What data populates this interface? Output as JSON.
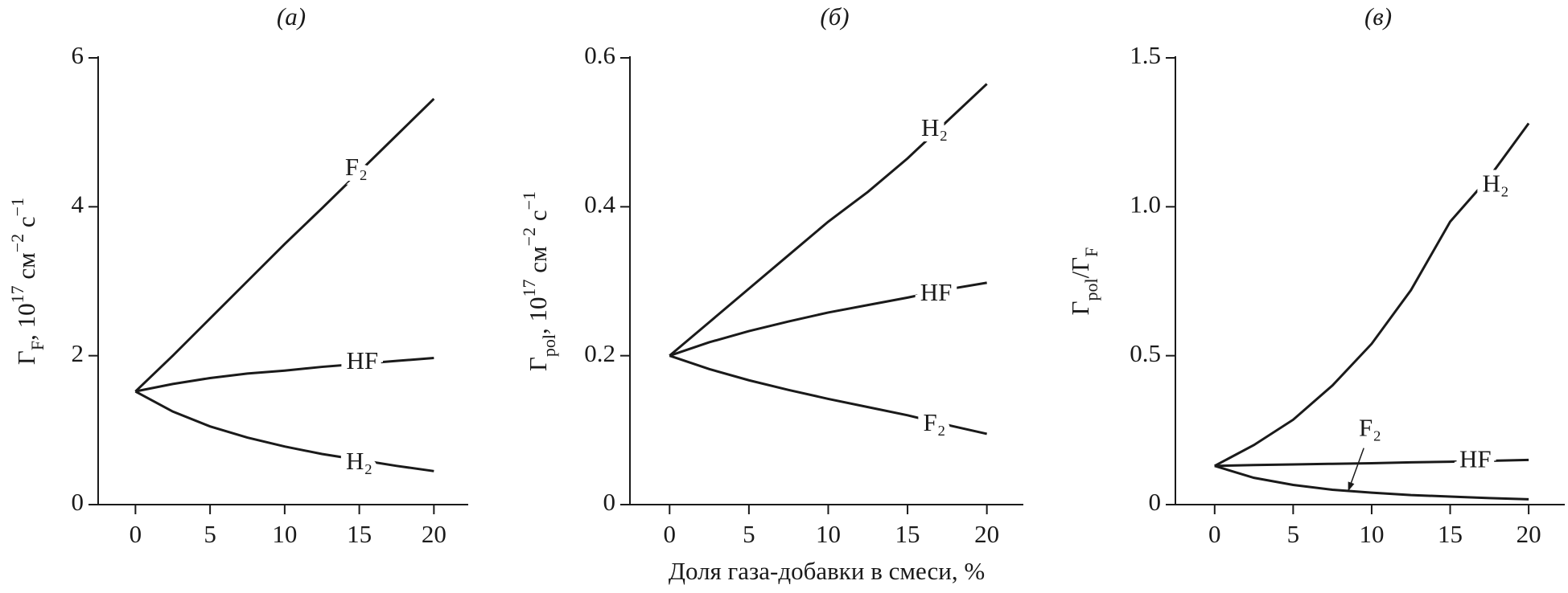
{
  "chart_data": [
    {
      "type": "line",
      "title": "(а)",
      "ylabel": [
        {
          "text": "Γ"
        },
        {
          "text": "F",
          "sub": true
        },
        {
          "text": ", 10"
        },
        {
          "text": "17",
          "sup": true
        },
        {
          "text": " см"
        },
        {
          "text": "−2",
          "sup": true
        },
        {
          "text": " с"
        },
        {
          "text": "−1",
          "sup": true
        }
      ],
      "x": [
        0,
        2.5,
        5,
        7.5,
        10,
        12.5,
        15,
        17.5,
        20
      ],
      "series": [
        {
          "name": "F₂",
          "color": "#1a1a1a",
          "values": [
            1.52,
            2.0,
            2.5,
            3.0,
            3.5,
            3.98,
            4.47,
            4.96,
            5.45
          ]
        },
        {
          "name": "HF",
          "color": "#1a1a1a",
          "values": [
            1.52,
            1.62,
            1.7,
            1.76,
            1.8,
            1.85,
            1.89,
            1.93,
            1.97
          ]
        },
        {
          "name": "H₂",
          "color": "#1a1a1a",
          "values": [
            1.52,
            1.25,
            1.05,
            0.9,
            0.78,
            0.68,
            0.6,
            0.52,
            0.45
          ]
        }
      ],
      "xlim": [
        -2.5,
        22.3
      ],
      "xticks": [
        0,
        5,
        10,
        15,
        20
      ],
      "ylim": [
        0,
        6
      ],
      "yticks": [
        0,
        2,
        4,
        6
      ]
    },
    {
      "type": "line",
      "title": "(б)",
      "xlabel": "Доля газа-добавки в смеси, %",
      "ylabel": [
        {
          "text": "Γ"
        },
        {
          "text": "pol",
          "sub": true
        },
        {
          "text": ", 10"
        },
        {
          "text": "17",
          "sup": true
        },
        {
          "text": " см"
        },
        {
          "text": "−2",
          "sup": true
        },
        {
          "text": " с"
        },
        {
          "text": "−1",
          "sup": true
        }
      ],
      "x": [
        0,
        2.5,
        5,
        7.5,
        10,
        12.5,
        15,
        17.5,
        20
      ],
      "series": [
        {
          "name": "H₂",
          "color": "#1a1a1a",
          "values": [
            0.2,
            0.245,
            0.29,
            0.335,
            0.38,
            0.42,
            0.465,
            0.515,
            0.565
          ]
        },
        {
          "name": "HF",
          "color": "#1a1a1a",
          "values": [
            0.2,
            0.218,
            0.233,
            0.246,
            0.258,
            0.268,
            0.278,
            0.289,
            0.298
          ]
        },
        {
          "name": "F₂",
          "color": "#1a1a1a",
          "values": [
            0.2,
            0.182,
            0.167,
            0.154,
            0.142,
            0.131,
            0.12,
            0.107,
            0.095
          ]
        }
      ],
      "xlim": [
        -2.5,
        22.3
      ],
      "xticks": [
        0,
        5,
        10,
        15,
        20
      ],
      "ylim": [
        0,
        0.6
      ],
      "yticks": [
        0,
        0.2,
        0.4,
        0.6
      ]
    },
    {
      "type": "line",
      "title": "(в)",
      "ylabel": [
        {
          "text": "Γ"
        },
        {
          "text": "pol",
          "sub": true
        },
        {
          "text": "/Γ"
        },
        {
          "text": "F",
          "sub": true
        }
      ],
      "x": [
        0,
        2.5,
        5,
        7.5,
        10,
        12.5,
        15,
        17.5,
        20
      ],
      "series": [
        {
          "name": "H₂",
          "color": "#1a1a1a",
          "values": [
            0.13,
            0.2,
            0.285,
            0.4,
            0.54,
            0.72,
            0.95,
            1.1,
            1.28
          ]
        },
        {
          "name": "HF",
          "color": "#1a1a1a",
          "values": [
            0.13,
            0.133,
            0.135,
            0.137,
            0.139,
            0.142,
            0.144,
            0.147,
            0.15
          ]
        },
        {
          "name": "F₂",
          "color": "#1a1a1a",
          "values": [
            0.13,
            0.09,
            0.066,
            0.05,
            0.04,
            0.032,
            0.027,
            0.022,
            0.018
          ]
        }
      ],
      "xlim": [
        -2.5,
        22.3
      ],
      "xticks": [
        0,
        5,
        10,
        15,
        20
      ],
      "ylim": [
        0,
        1.5
      ],
      "yticks": [
        0,
        0.5,
        {
          "value": 1.0,
          "label": "1.0"
        },
        1.5
      ]
    }
  ]
}
